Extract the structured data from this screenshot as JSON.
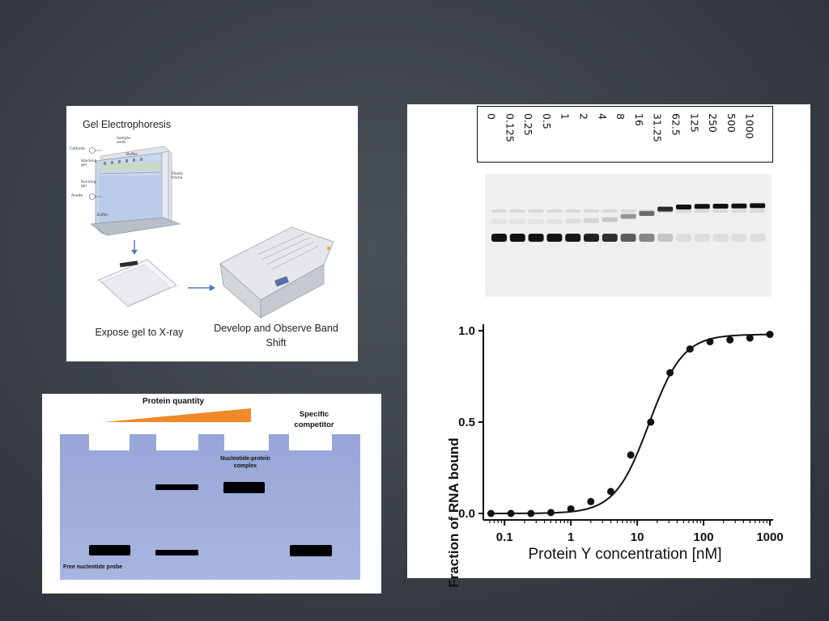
{
  "gel_panel": {
    "title": "Gel Electrophoresis",
    "apparatus_labels": {
      "cathode": "Cathode",
      "sample_wells": "Sample wells",
      "buffer_top": "Buffer",
      "stacking_gel": "Stacking gel",
      "running_gel": "Running gel",
      "plastic_frame": "Plastic frame",
      "anode": "Anode",
      "buffer_bottom": "Buffer"
    },
    "caption_left": "Expose gel to X-ray",
    "caption_right_line1": "Develop and Observe Band",
    "caption_right_line2": "Shift"
  },
  "diagram_panel": {
    "protein_quantity": "Protein quantity",
    "specific_competitor_line1": "Specific",
    "specific_competitor_line2": "competitor",
    "complex_line1": "Nucleotide-protein",
    "complex_line2": "complex",
    "free_probe": "Free nucleotide probe",
    "colors": {
      "gel": "#a4b1dd",
      "triangle": "#f08a2a"
    }
  },
  "emsa_panel": {
    "lane_concentrations": [
      "0",
      "0.125",
      "0.25",
      "0.5",
      "1",
      "2",
      "4",
      "8",
      "16",
      "31.25",
      "62.5",
      "125",
      "250",
      "500",
      "1000"
    ]
  },
  "chart_data": {
    "type": "scatter",
    "xscale": "log",
    "xlabel": "Protein Y concentration [nM]",
    "ylabel": "Fraction of RNA bound",
    "xlim": [
      0.06,
      1000
    ],
    "ylim": [
      0,
      1
    ],
    "xticks": [
      "0.1",
      "1",
      "10",
      "100",
      "1000"
    ],
    "yticks": [
      "0.0",
      "0.5",
      "1.0"
    ],
    "points": [
      {
        "x": 0.0625,
        "y": 0.0
      },
      {
        "x": 0.125,
        "y": 0.0
      },
      {
        "x": 0.25,
        "y": 0.0
      },
      {
        "x": 0.5,
        "y": 0.005
      },
      {
        "x": 1,
        "y": 0.025
      },
      {
        "x": 2,
        "y": 0.065
      },
      {
        "x": 4,
        "y": 0.12
      },
      {
        "x": 8,
        "y": 0.32
      },
      {
        "x": 16,
        "y": 0.5
      },
      {
        "x": 31.25,
        "y": 0.77
      },
      {
        "x": 62.5,
        "y": 0.9
      },
      {
        "x": 125,
        "y": 0.94
      },
      {
        "x": 250,
        "y": 0.95
      },
      {
        "x": 500,
        "y": 0.96
      },
      {
        "x": 1000,
        "y": 0.98
      }
    ],
    "fit": {
      "kd": 15,
      "hill": 1.7,
      "ymax": 0.98
    }
  }
}
